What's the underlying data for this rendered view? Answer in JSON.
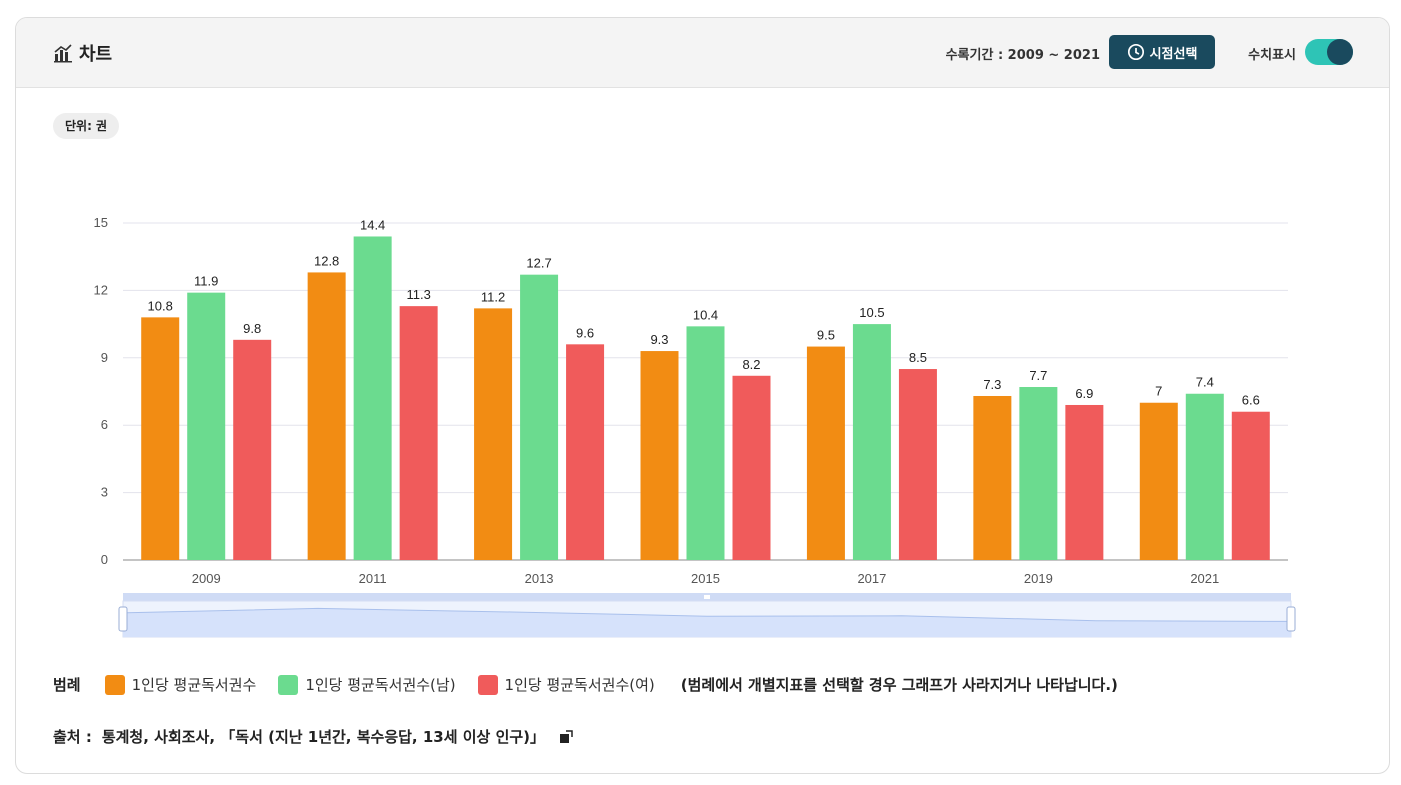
{
  "header": {
    "title": "차트",
    "period": "수록기간 : 2009 ~ 2021",
    "time_button": "시점선택",
    "toggle_label": "수치표시",
    "toggle_on": true
  },
  "unit": "단위: 권",
  "legend": {
    "title": "범례",
    "note": "(범례에서 개별지표를 선택할 경우 그래프가 사라지거나 나타납니다.)"
  },
  "source": {
    "label": "출처 :",
    "text": "통계청, 사회조사, 「독서 (지난 1년간, 복수응답, 13세 이상 인구)」"
  },
  "colors": {
    "accent": "#1a4a5e",
    "toggle": "#2ec4b6",
    "series": [
      "#f28c13",
      "#6bdb8f",
      "#f05b5b"
    ],
    "zoom_fill": "#d6e2fb",
    "zoom_line": "#a9c0ec"
  },
  "icons": {
    "title": "bar-chart-icon",
    "time_button": "clock-icon",
    "source": "external-link-icon"
  },
  "chart_data": {
    "type": "bar",
    "categories": [
      "2009",
      "2011",
      "2013",
      "2015",
      "2017",
      "2019",
      "2021"
    ],
    "series": [
      {
        "name": "1인당 평균독서권수",
        "values": [
          10.8,
          12.8,
          11.2,
          9.3,
          9.5,
          7.3,
          7
        ]
      },
      {
        "name": "1인당 평균독서권수(남)",
        "values": [
          11.9,
          14.4,
          12.7,
          10.4,
          10.5,
          7.7,
          7.4
        ]
      },
      {
        "name": "1인당 평균독서권수(여)",
        "values": [
          9.8,
          11.3,
          9.6,
          8.2,
          8.5,
          6.9,
          6.6
        ]
      }
    ],
    "ylim": [
      0,
      15
    ],
    "yticks": [
      0,
      3,
      6,
      9,
      12,
      15
    ],
    "grid": true,
    "data_labels": true
  }
}
